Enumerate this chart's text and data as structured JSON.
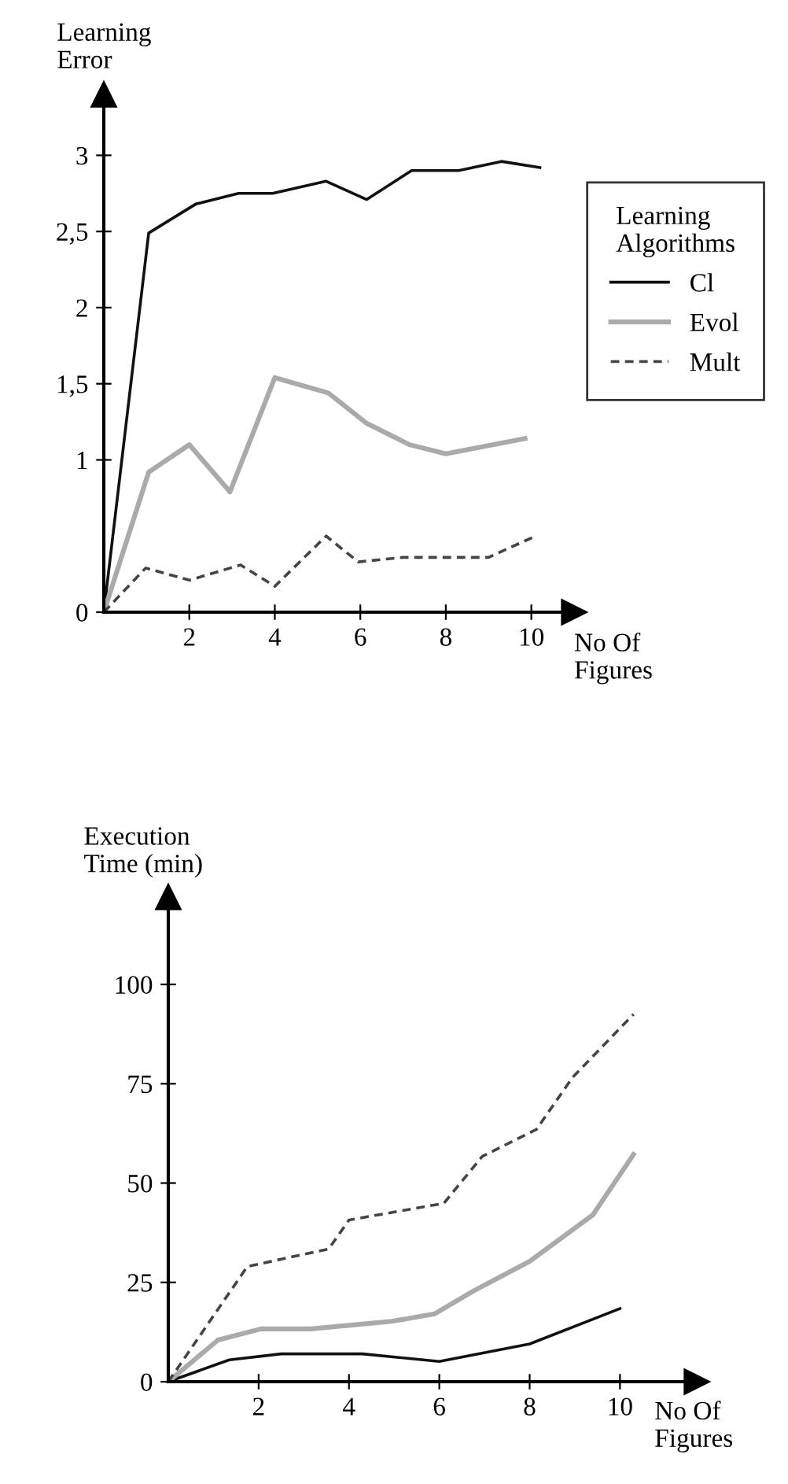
{
  "chart_data": [
    {
      "type": "line",
      "ylabel": "Learning\nError",
      "xlabel": "No Of\nFigures",
      "legend_title": "Learning\nAlgorithms",
      "legend": "right",
      "xlim": [
        0,
        11
      ],
      "xticks": [
        2,
        4,
        6,
        8,
        10
      ],
      "ylim": [
        0,
        3.4
      ],
      "yticks": [
        0,
        1,
        {
          "value": 1.5,
          "label": "1,5"
        },
        2,
        {
          "value": 2.5,
          "label": "2,5"
        },
        3
      ],
      "grid": false,
      "series": [
        {
          "name": "Cl",
          "color": "#111111",
          "line_style": "solid",
          "x": [
            0,
            1.05,
            2.15,
            3.15,
            3.95,
            5.2,
            6.15,
            7.2,
            8.3,
            9.3,
            10.2
          ],
          "values": [
            0,
            2.49,
            2.68,
            2.75,
            2.75,
            2.83,
            2.71,
            2.9,
            2.9,
            2.96,
            2.92
          ]
        },
        {
          "name": "Evol",
          "color": "#aaaaaa",
          "line_style": "solid",
          "x": [
            0,
            1.05,
            2.0,
            2.95,
            4.0,
            5.25,
            6.15,
            7.15,
            8.0,
            9.85
          ],
          "values": [
            0,
            0.92,
            1.1,
            0.79,
            1.54,
            1.44,
            1.24,
            1.1,
            1.04,
            1.14
          ]
        },
        {
          "name": "Mult",
          "color": "#444444",
          "line_style": "dashed",
          "x": [
            0,
            0.98,
            2.0,
            3.2,
            4.0,
            5.2,
            5.95,
            7.0,
            9.0,
            10.1
          ],
          "values": [
            0,
            0.29,
            0.21,
            0.31,
            0.17,
            0.5,
            0.33,
            0.36,
            0.36,
            0.5
          ]
        }
      ]
    },
    {
      "type": "line",
      "ylabel": "Execution\nTime (min)",
      "xlabel": "No Of\nFigures",
      "legend": false,
      "xlim": [
        0,
        11.7
      ],
      "xticks": [
        2,
        4,
        6,
        8,
        10
      ],
      "ylim": [
        0,
        122
      ],
      "yticks": [
        0,
        25,
        50,
        75,
        100
      ],
      "grid": false,
      "series": [
        {
          "color": "#111111",
          "line_style": "solid",
          "x": [
            0,
            1.35,
            2.5,
            4.3,
            6.0,
            8.0,
            10.0
          ],
          "values": [
            0,
            5.5,
            7.0,
            7.0,
            5.1,
            9.5,
            18.4
          ]
        },
        {
          "color": "#aaaaaa",
          "line_style": "solid",
          "x": [
            0,
            1.1,
            2.05,
            3.15,
            4.95,
            5.9,
            6.75,
            8.0,
            9.4,
            10.3
          ],
          "values": [
            0,
            10.5,
            13.3,
            13.3,
            15.2,
            17.1,
            22.8,
            30.3,
            42.0,
            57.2
          ]
        },
        {
          "color": "#444444",
          "line_style": "dashed",
          "x": [
            0,
            1.75,
            3.55,
            4.0,
            6.1,
            6.95,
            8.15,
            8.95,
            10.3
          ],
          "values": [
            0,
            29,
            33.4,
            40.7,
            44.9,
            56.7,
            63.5,
            76.6,
            92.5
          ]
        }
      ]
    }
  ]
}
